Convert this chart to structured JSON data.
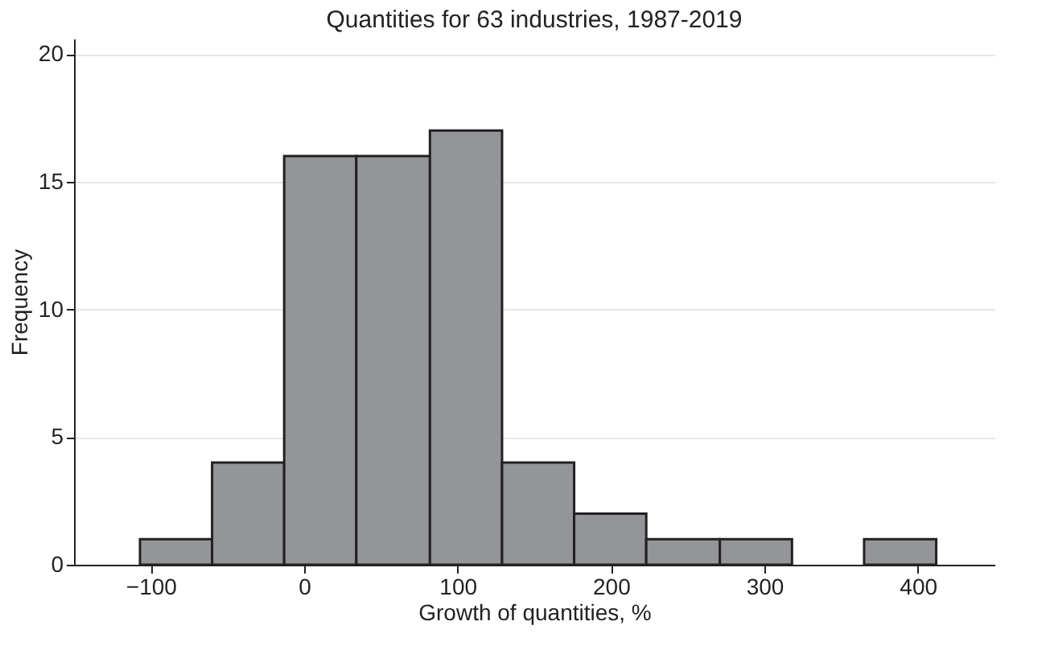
{
  "chart_data": {
    "type": "histogram",
    "title": "Quantities for 63 industries, 1987-2019",
    "xlabel": "Growth of quantities, %",
    "ylabel": "Frequency",
    "bins": [
      -107,
      -60,
      -13,
      34,
      82,
      129,
      176,
      223,
      271,
      318,
      365,
      412
    ],
    "values": [
      1,
      4,
      16,
      16,
      17,
      4,
      2,
      1,
      1,
      0,
      1
    ],
    "color": "#939598",
    "xlim": [
      -150,
      450
    ],
    "xticks": [
      -100,
      0,
      100,
      200,
      300,
      400
    ],
    "ylim": [
      0,
      20.6
    ],
    "yticks": [
      0,
      5,
      10,
      15,
      20
    ],
    "grid": "y"
  }
}
